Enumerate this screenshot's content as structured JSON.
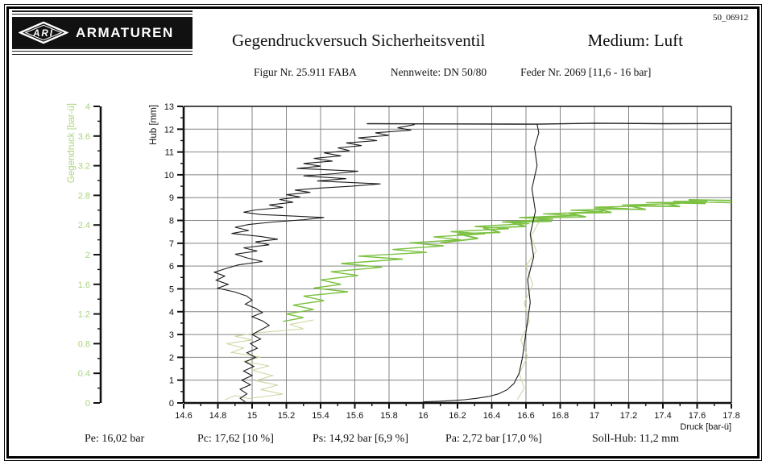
{
  "doc_number": "50_06912",
  "logo": {
    "brand": "ARMATUREN",
    "mark": "ARI"
  },
  "header": {
    "title": "Gegendruckversuch Sicherheitsventil",
    "medium": "Medium: Luft",
    "spec_items": [
      "Figur Nr. 25.911 FABA",
      "Nennweite: DN 50/80",
      "Feder Nr. 2069 [11,6 - 16 bar]"
    ]
  },
  "footer": {
    "items": [
      "Pe: 16,02 bar",
      "Pc: 17,62 [10 %]",
      "Ps: 14,92 bar [6,9 %]",
      "Pa: 2,72 bar [17,0 %]",
      "Soll-Hub: 11,2 mm"
    ]
  },
  "chart_data": {
    "type": "line",
    "title": "Gegendruckversuch Sicherheitsventil - Medium: Luft",
    "x_axis": {
      "label": "Druck [bar-ü]",
      "min": 14.6,
      "max": 17.8,
      "tick_step": 0.2,
      "minor_step": 0.1,
      "tick_labels": [
        "14.6",
        "14.8",
        "15",
        "15.2",
        "15.4",
        "15.6",
        "15.8",
        "16",
        "16.2",
        "16.4",
        "16.6",
        "16.8",
        "17",
        "17.2",
        "17.4",
        "17.6",
        "17.8"
      ]
    },
    "y_axis_hub": {
      "label": "Hub [mm]",
      "min": 0,
      "max": 13,
      "tick_step": 1,
      "minor_step": 0.5,
      "tick_labels": [
        "0",
        "1",
        "2",
        "3",
        "4",
        "5",
        "6",
        "7",
        "8",
        "9",
        "10",
        "11",
        "12",
        "13"
      ]
    },
    "y_axis_gegendruck": {
      "label": "Gegendruck [bar-ü]",
      "min": 0,
      "max": 4,
      "tick_step": 0.4,
      "minor_step": 0.2,
      "tick_labels": [
        "0",
        "0.4",
        "0.8",
        "1.2",
        "1.6",
        "2",
        "2.4",
        "2.8",
        "3.2",
        "3.6",
        "4"
      ]
    },
    "grid": {
      "on": true,
      "color": "#848484",
      "x_step": 0.2,
      "y_step_mm": 1
    },
    "colors": {
      "hub_curve": "#1c1c1c",
      "gegendruck_rise": "#7cc142",
      "gegendruck_fall": "#cdd6a2",
      "axis_green": "#a9d37c"
    },
    "legend": "none",
    "series": [
      {
        "name": "hub-opening",
        "axis": "hub",
        "color_key": "hub_curve",
        "width": 1.1,
        "points": [
          [
            16.0,
            0.05
          ],
          [
            16.08,
            0.07
          ],
          [
            16.16,
            0.1
          ],
          [
            16.24,
            0.14
          ],
          [
            16.31,
            0.2
          ],
          [
            16.38,
            0.28
          ],
          [
            16.44,
            0.4
          ],
          [
            16.49,
            0.58
          ],
          [
            16.53,
            0.85
          ],
          [
            16.56,
            1.3
          ],
          [
            16.58,
            2.0
          ],
          [
            16.6,
            3.1
          ],
          [
            16.625,
            4.4
          ],
          [
            16.61,
            5.4
          ],
          [
            16.645,
            6.4
          ],
          [
            16.625,
            7.4
          ],
          [
            16.655,
            8.4
          ],
          [
            16.635,
            9.4
          ],
          [
            16.665,
            10.4
          ],
          [
            16.65,
            11.2
          ],
          [
            16.675,
            11.85
          ],
          [
            16.665,
            12.22
          ]
        ]
      },
      {
        "name": "hub-full-lift",
        "axis": "hub",
        "color_key": "hub_curve",
        "width": 1.4,
        "points": [
          [
            15.67,
            12.24
          ],
          [
            16.2,
            12.23
          ],
          [
            16.665,
            12.22
          ],
          [
            17.0,
            12.26
          ],
          [
            17.4,
            12.24
          ],
          [
            17.8,
            12.25
          ]
        ]
      },
      {
        "name": "hub-closing",
        "axis": "hub",
        "color_key": "hub_curve",
        "width": 1.1,
        "points": [
          [
            15.95,
            12.2
          ],
          [
            15.85,
            12.06
          ],
          [
            15.93,
            11.96
          ],
          [
            15.72,
            11.84
          ],
          [
            15.8,
            11.73
          ],
          [
            15.62,
            11.62
          ],
          [
            15.73,
            11.5
          ],
          [
            15.55,
            11.4
          ],
          [
            15.64,
            11.28
          ],
          [
            15.5,
            11.18
          ],
          [
            15.57,
            11.06
          ],
          [
            15.42,
            10.96
          ],
          [
            15.52,
            10.83
          ],
          [
            15.36,
            10.72
          ],
          [
            15.47,
            10.6
          ],
          [
            15.3,
            10.5
          ],
          [
            15.4,
            10.38
          ],
          [
            15.26,
            10.28
          ],
          [
            15.62,
            10.16
          ],
          [
            15.48,
            10.05
          ],
          [
            15.3,
            9.95
          ],
          [
            15.55,
            9.83
          ],
          [
            15.38,
            9.73
          ],
          [
            15.75,
            9.6
          ],
          [
            15.58,
            9.5
          ],
          [
            15.4,
            9.42
          ],
          [
            15.25,
            9.33
          ],
          [
            15.34,
            9.23
          ],
          [
            15.2,
            9.13
          ],
          [
            15.28,
            9.03
          ],
          [
            15.16,
            8.92
          ],
          [
            15.24,
            8.8
          ],
          [
            15.1,
            8.68
          ],
          [
            15.18,
            8.57
          ],
          [
            15.02,
            8.46
          ],
          [
            14.95,
            8.36
          ],
          [
            15.05,
            8.26
          ],
          [
            15.42,
            8.13
          ],
          [
            15.3,
            8.03
          ],
          [
            15.12,
            7.93
          ],
          [
            14.98,
            7.82
          ],
          [
            14.9,
            7.7
          ],
          [
            14.98,
            7.56
          ],
          [
            14.88,
            7.43
          ],
          [
            15.05,
            7.3
          ],
          [
            15.15,
            7.18
          ],
          [
            15.02,
            7.06
          ],
          [
            15.1,
            6.93
          ],
          [
            14.95,
            6.8
          ],
          [
            15.03,
            6.66
          ],
          [
            14.9,
            6.52
          ],
          [
            14.97,
            6.36
          ],
          [
            15.06,
            6.2
          ],
          [
            14.92,
            6.05
          ],
          [
            14.85,
            5.9
          ],
          [
            14.78,
            5.73
          ],
          [
            14.84,
            5.56
          ],
          [
            14.79,
            5.38
          ],
          [
            14.86,
            5.2
          ],
          [
            14.8,
            5.03
          ],
          [
            14.9,
            4.86
          ],
          [
            14.97,
            4.68
          ],
          [
            15.0,
            4.5
          ],
          [
            14.96,
            4.33
          ],
          [
            15.02,
            4.15
          ],
          [
            15.06,
            3.96
          ],
          [
            15.0,
            3.78
          ],
          [
            15.06,
            3.6
          ],
          [
            15.1,
            3.4
          ],
          [
            15.05,
            3.2
          ],
          [
            15.0,
            3.0
          ],
          [
            15.05,
            2.8
          ],
          [
            14.99,
            2.6
          ],
          [
            15.03,
            2.4
          ],
          [
            14.97,
            2.2
          ],
          [
            15.02,
            2.0
          ],
          [
            14.96,
            1.8
          ],
          [
            15.01,
            1.6
          ],
          [
            14.95,
            1.4
          ],
          [
            15.0,
            1.2
          ],
          [
            14.94,
            1.0
          ],
          [
            14.99,
            0.8
          ],
          [
            14.93,
            0.6
          ],
          [
            14.97,
            0.4
          ],
          [
            14.93,
            0.2
          ],
          [
            14.96,
            0.05
          ]
        ]
      },
      {
        "name": "gegendruck-rising",
        "axis": "gd",
        "color_key": "gegendruck_rise",
        "width": 1.4,
        "points": [
          [
            15.18,
            1.1
          ],
          [
            15.3,
            1.15
          ],
          [
            15.2,
            1.2
          ],
          [
            15.36,
            1.26
          ],
          [
            15.24,
            1.32
          ],
          [
            15.42,
            1.38
          ],
          [
            15.3,
            1.44
          ],
          [
            15.56,
            1.5
          ],
          [
            15.36,
            1.55
          ],
          [
            15.52,
            1.6
          ],
          [
            15.4,
            1.66
          ],
          [
            15.62,
            1.72
          ],
          [
            15.46,
            1.77
          ],
          [
            15.76,
            1.83
          ],
          [
            15.52,
            1.88
          ],
          [
            15.88,
            1.94
          ],
          [
            15.62,
            1.98
          ],
          [
            16.02,
            2.03
          ],
          [
            15.82,
            2.07
          ],
          [
            16.12,
            2.12
          ],
          [
            15.92,
            2.16
          ],
          [
            16.22,
            2.2
          ],
          [
            16.06,
            2.24
          ],
          [
            16.36,
            2.28
          ],
          [
            16.16,
            2.31
          ],
          [
            16.5,
            2.35
          ],
          [
            16.3,
            2.38
          ],
          [
            16.62,
            2.42
          ],
          [
            16.46,
            2.44
          ],
          [
            16.76,
            2.48
          ],
          [
            16.56,
            2.5
          ],
          [
            16.9,
            2.53
          ],
          [
            16.7,
            2.55
          ],
          [
            17.05,
            2.58
          ],
          [
            16.86,
            2.6
          ],
          [
            17.2,
            2.62
          ],
          [
            17.0,
            2.64
          ],
          [
            17.36,
            2.66
          ],
          [
            17.16,
            2.67
          ],
          [
            17.5,
            2.69
          ],
          [
            17.3,
            2.7
          ],
          [
            17.66,
            2.72
          ],
          [
            17.46,
            2.72
          ],
          [
            17.8,
            2.7
          ]
        ]
      },
      {
        "name": "gegendruck-band",
        "axis": "gd",
        "color_key": "gegendruck_rise",
        "width": 1.8,
        "points": [
          [
            16.1,
            2.16
          ],
          [
            16.32,
            2.22
          ],
          [
            16.2,
            2.28
          ],
          [
            16.45,
            2.3
          ],
          [
            16.35,
            2.36
          ],
          [
            16.6,
            2.38
          ],
          [
            16.5,
            2.44
          ],
          [
            16.75,
            2.45
          ],
          [
            16.65,
            2.5
          ],
          [
            16.95,
            2.51
          ],
          [
            16.85,
            2.56
          ],
          [
            17.1,
            2.57
          ],
          [
            17.0,
            2.62
          ],
          [
            17.3,
            2.61
          ],
          [
            17.2,
            2.66
          ],
          [
            17.5,
            2.65
          ],
          [
            17.4,
            2.7
          ],
          [
            17.65,
            2.69
          ],
          [
            17.55,
            2.74
          ],
          [
            17.8,
            2.73
          ]
        ]
      },
      {
        "name": "gegendruck-falling-high",
        "axis": "gd",
        "color_key": "gegendruck_fall",
        "width": 1.1,
        "points": [
          [
            16.68,
            2.46
          ],
          [
            16.63,
            2.25
          ],
          [
            16.66,
            2.05
          ],
          [
            16.6,
            1.85
          ],
          [
            16.64,
            1.6
          ],
          [
            16.59,
            1.35
          ],
          [
            16.62,
            1.1
          ],
          [
            16.57,
            0.85
          ],
          [
            16.61,
            0.62
          ],
          [
            16.56,
            0.4
          ],
          [
            16.59,
            0.2
          ],
          [
            16.55,
            0.05
          ]
        ]
      },
      {
        "name": "gegendruck-falling-low",
        "axis": "gd",
        "color_key": "gegendruck_fall",
        "width": 1.1,
        "points": [
          [
            15.36,
            1.12
          ],
          [
            15.22,
            1.06
          ],
          [
            15.3,
            1.0
          ],
          [
            15.05,
            0.95
          ],
          [
            14.9,
            0.9
          ],
          [
            15.0,
            0.85
          ],
          [
            14.85,
            0.8
          ],
          [
            14.95,
            0.74
          ],
          [
            14.88,
            0.68
          ],
          [
            15.05,
            0.62
          ],
          [
            14.95,
            0.56
          ],
          [
            15.1,
            0.5
          ],
          [
            15.0,
            0.44
          ],
          [
            15.12,
            0.37
          ],
          [
            15.02,
            0.3
          ],
          [
            15.15,
            0.24
          ],
          [
            15.05,
            0.18
          ],
          [
            15.18,
            0.12
          ],
          [
            14.98,
            0.06
          ],
          [
            14.9,
            0.1
          ],
          [
            14.84,
            0.04
          ]
        ]
      }
    ],
    "results": {
      "Pe": "16,02 bar",
      "Pc": "17,62 [10 %]",
      "Ps": "14,92 bar [6,9 %]",
      "Pa": "2,72 bar [17,0 %]",
      "Soll-Hub": "11,2 mm"
    }
  }
}
